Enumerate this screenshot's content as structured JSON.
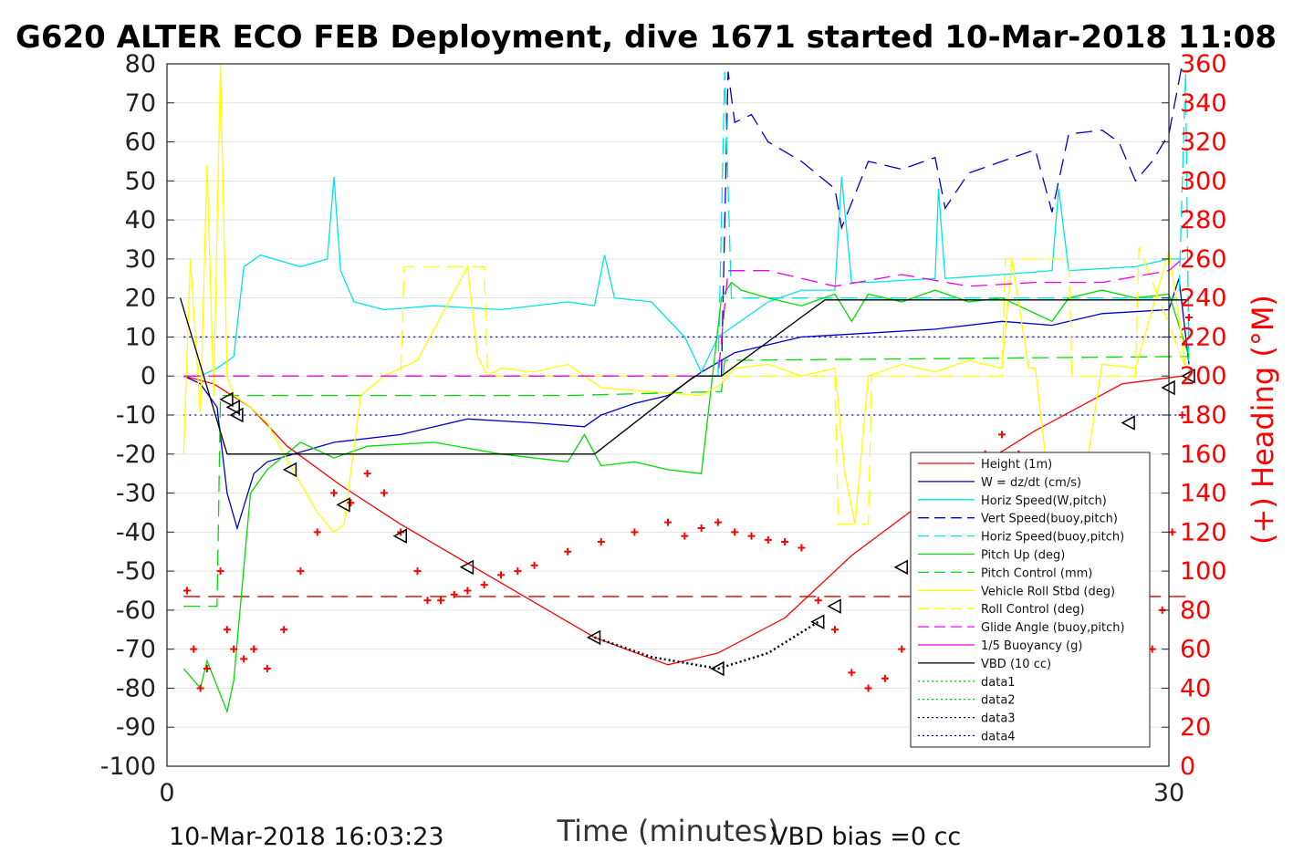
{
  "chart_data": {
    "type": "line",
    "title": "G620 ALTER ECO FEB Deployment, dive 1671 started 10-Mar-2018 11:08",
    "xlabel": "Time (minutes)",
    "ylabel_right": "(+) Heading (°M)",
    "footer_left": "10-Mar-2018 16:03:23",
    "footer_right": "VBD bias =0 cc",
    "xlim": [
      0,
      30
    ],
    "ylim": [
      -100,
      80
    ],
    "ylim_right": [
      0,
      360
    ],
    "x_ticks": [
      "0",
      "30"
    ],
    "y_ticks": [
      "80",
      "70",
      "60",
      "50",
      "40",
      "30",
      "20",
      "10",
      "0",
      "-10",
      "-20",
      "-30",
      "-40",
      "-50",
      "-60",
      "-70",
      "-80",
      "-90",
      "-100"
    ],
    "y_ticks_right": [
      "360",
      "340",
      "320",
      "300",
      "280",
      "260",
      "240",
      "220",
      "200",
      "180",
      "160",
      "140",
      "120",
      "100",
      "80",
      "60",
      "40",
      "20",
      "0"
    ],
    "grid": "horizontal",
    "legend_position": "lower-right",
    "colors": {
      "height": "#ff0000",
      "w": "#0000cc",
      "horiz_speed": "#00e5e5",
      "pitch": "#00dd00",
      "roll": "#ffff00",
      "glide": "#ee00ee",
      "vbd": "#000000",
      "heading": "#ff0000"
    },
    "legend": [
      {
        "label": "Height (1m)",
        "color": "#ff0000",
        "dash": "solid"
      },
      {
        "label": "W = dz/dt (cm/s)",
        "color": "#0000cc",
        "dash": "solid"
      },
      {
        "label": "Horiz Speed(W,pitch)",
        "color": "#00e5e5",
        "dash": "solid"
      },
      {
        "label": "Vert Speed(buoy,pitch)",
        "color": "#0000cc",
        "dash": "dashed"
      },
      {
        "label": "Horiz Speed(buoy,pitch)",
        "color": "#00e5e5",
        "dash": "dashed"
      },
      {
        "label": "Pitch Up (deg)",
        "color": "#00dd00",
        "dash": "solid"
      },
      {
        "label": "Pitch Control (mm)",
        "color": "#00dd00",
        "dash": "dashed"
      },
      {
        "label": "Vehicle Roll Stbd (deg)",
        "color": "#ffff00",
        "dash": "solid"
      },
      {
        "label": "Roll Control (deg)",
        "color": "#ffff00",
        "dash": "dashed"
      },
      {
        "label": "Glide Angle (buoy,pitch)",
        "color": "#ee00ee",
        "dash": "dashed"
      },
      {
        "label": "1/5 Buoyancy (g)",
        "color": "#ee00ee",
        "dash": "solid"
      },
      {
        "label": "VBD (10 cc)",
        "color": "#000000",
        "dash": "solid"
      },
      {
        "label": "data1",
        "color": "#00dd00",
        "dash": "dotted"
      },
      {
        "label": "data2",
        "color": "#00dd00",
        "dash": "dotted"
      },
      {
        "label": "data3",
        "color": "#000088",
        "dash": "dotted"
      },
      {
        "label": "data4",
        "color": "#0000cc",
        "dash": "dotted"
      }
    ],
    "series": [
      {
        "key": "height",
        "color": "#ff0000",
        "dash": "solid",
        "x": [
          0.5,
          1.4,
          2.5,
          3.6,
          5.2,
          7.0,
          9.0,
          11.0,
          12.8,
          15.0,
          16.5,
          18.5,
          20.5,
          23.0,
          26.0,
          28.6,
          30.4
        ],
        "y": [
          0,
          -2,
          -8,
          -18,
          -28,
          -38,
          -48,
          -58,
          -67,
          -74,
          -71,
          -62,
          -46,
          -30,
          -14,
          -2,
          0
        ]
      },
      {
        "key": "w",
        "color": "#0000cc",
        "dash": "solid",
        "x": [
          0.5,
          1.0,
          1.5,
          1.8,
          2.1,
          2.6,
          3.0,
          5.0,
          7.0,
          9.0,
          11.0,
          12.5,
          13.0,
          14.0,
          15.0,
          16.0,
          17.0,
          19.0,
          21.0,
          23.0,
          25.0,
          26.5,
          28.0,
          30.0,
          30.3,
          30.6
        ],
        "y": [
          0,
          -2,
          -8,
          -30,
          -39,
          -25,
          -22,
          -17,
          -15,
          -11,
          -12,
          -13,
          -10,
          -7,
          -5,
          1,
          6,
          10,
          11,
          12,
          14,
          13,
          16,
          17,
          25,
          3
        ]
      },
      {
        "key": "horiz_speed",
        "color": "#00e5e5",
        "dash": "solid",
        "x": [
          1.0,
          1.5,
          2.0,
          2.3,
          2.8,
          4.0,
          4.8,
          5.0,
          5.2,
          5.6,
          6.5,
          8.0,
          10.0,
          12.0,
          12.8,
          13.1,
          13.4,
          14.5,
          15.5,
          16.0,
          16.5,
          17.0,
          18.0,
          19.0,
          20.0,
          20.2,
          20.5,
          21.0,
          23.0,
          23.1,
          23.3,
          25.0,
          26.5,
          26.7,
          27.0,
          29.0,
          30.0,
          30.5
        ],
        "y": [
          0,
          2,
          5,
          28,
          31,
          28,
          30,
          51,
          27,
          19,
          17,
          18,
          17,
          19,
          18,
          31,
          20,
          19,
          10,
          1,
          10,
          13,
          19,
          22,
          22,
          51,
          24,
          24,
          25,
          48,
          25,
          26,
          27,
          48,
          27,
          28,
          30,
          30
        ]
      },
      {
        "key": "vert_speed_buoy",
        "color": "#0000cc",
        "dash": "dashed",
        "x": [
          16.6,
          16.8,
          17.0,
          17.5,
          18.0,
          19.0,
          20.0,
          20.2,
          21.0,
          22.0,
          23.0,
          23.3,
          24.0,
          25.0,
          26.0,
          26.5,
          27.0,
          28.0,
          28.5,
          29.0,
          29.5,
          30.0,
          30.4
        ],
        "y": [
          0,
          78,
          65,
          67,
          60,
          55,
          48,
          38,
          55,
          53,
          56,
          43,
          52,
          55,
          58,
          42,
          62,
          63,
          60,
          50,
          55,
          62,
          80
        ]
      },
      {
        "key": "horiz_speed_buoy",
        "color": "#00e5e5",
        "dash": "dashed",
        "x": [
          16.5,
          16.7,
          16.9,
          30.3,
          30.5,
          30.6
        ],
        "y": [
          0,
          78,
          20,
          20,
          78,
          0
        ]
      },
      {
        "key": "pitch",
        "color": "#00dd00",
        "dash": "solid",
        "x": [
          0.5,
          1.0,
          1.2,
          1.8,
          2.0,
          2.5,
          3.0,
          4.0,
          5.0,
          6.0,
          8.0,
          10.0,
          12.0,
          12.5,
          13.0,
          14.0,
          15.0,
          16.0,
          16.6,
          16.9,
          17.2,
          18.0,
          19.0,
          20.0,
          20.5,
          21.0,
          22.0,
          23.0,
          24.0,
          25.0,
          26.5,
          27.0,
          28.0,
          29.0,
          30.0,
          30.6
        ],
        "y": [
          -75,
          -80,
          -73,
          -86,
          -78,
          -30,
          -24,
          -17,
          -21,
          -18,
          -17,
          -20,
          -22,
          -15,
          -23,
          -22,
          -24,
          -25,
          20,
          24,
          22,
          20,
          18,
          21,
          14,
          21,
          19,
          22,
          19,
          20,
          14,
          20,
          22,
          20,
          21,
          5
        ]
      },
      {
        "key": "pitch_control",
        "color": "#00dd00",
        "dash": "dashed",
        "x": [
          0.5,
          1.5,
          1.6,
          3.5,
          12.0,
          16.6,
          16.7,
          30.6
        ],
        "y": [
          -59,
          -59,
          -5,
          -5,
          -5,
          -4,
          4,
          5
        ]
      },
      {
        "key": "roll",
        "color": "#ffff00",
        "dash": "solid",
        "x": [
          0.5,
          0.7,
          1.0,
          1.2,
          1.4,
          1.6,
          1.8,
          2.0,
          2.5,
          3.0,
          3.5,
          4.5,
          5.0,
          5.3,
          5.8,
          6.5,
          7.5,
          9.0,
          9.3,
          9.6,
          10.0,
          11.0,
          12.0,
          13.0,
          16.0,
          16.6,
          17.0,
          18.0,
          19.0,
          20.0,
          20.3,
          20.6,
          21.0,
          22.0,
          23.0,
          24.0,
          25.0,
          25.3,
          25.8,
          26.0,
          26.5,
          27.0,
          27.5,
          28.0,
          29.0,
          30.0,
          30.5
        ],
        "y": [
          -20,
          30,
          -10,
          54,
          -5,
          80,
          0,
          -5,
          -8,
          -12,
          -20,
          -35,
          -40,
          -38,
          -5,
          0,
          4,
          28,
          5,
          0,
          2,
          1,
          3,
          -3,
          -5,
          -2,
          2,
          3,
          0,
          2,
          -25,
          -38,
          0,
          3,
          1,
          4,
          2,
          30,
          2,
          2,
          -35,
          -38,
          -25,
          3,
          2,
          32,
          3
        ]
      },
      {
        "key": "roll_control",
        "color": "#ffff00",
        "dash": "dashed",
        "x": [
          0.5,
          7.0,
          7.1,
          9.5,
          9.6,
          16.5,
          20.0,
          20.1,
          21.0,
          21.1,
          25.0,
          25.1,
          27.0,
          27.1,
          29.0,
          29.1,
          30.6
        ],
        "y": [
          0,
          0,
          28,
          28,
          0,
          0,
          0,
          -38,
          -38,
          0,
          0,
          30,
          30,
          0,
          0,
          33,
          0
        ]
      },
      {
        "key": "glide",
        "color": "#ee00ee",
        "dash": "dashed",
        "x": [
          0.5,
          16.5,
          16.8,
          18.0,
          20.0,
          22.0,
          24.0,
          26.0,
          28.0,
          30.0,
          30.4
        ],
        "y": [
          0,
          0,
          27,
          27,
          23,
          26,
          23,
          24,
          24,
          27,
          30
        ]
      },
      {
        "key": "vbd",
        "color": "#000000",
        "dash": "solid",
        "x": [
          0.4,
          1.8,
          12.8,
          15.8,
          16.6,
          19.7,
          30.6
        ],
        "y": [
          20,
          -20,
          -20,
          0,
          0,
          19.5,
          19.5
        ]
      }
    ],
    "ref_lines": [
      {
        "y": 10,
        "color": "#000088",
        "dash": "dotted",
        "x0": 0.5,
        "x1": 30.4
      },
      {
        "y": -10,
        "color": "#0000cc",
        "dash": "dotted",
        "x0": 0.5,
        "x1": 30.4
      },
      {
        "y": 0,
        "color": "#8844ff",
        "dash": "dashed",
        "x0": 0.5,
        "x1": 16.5
      },
      {
        "y": -56.5,
        "color": "#cc0000",
        "dash": "dashed",
        "x0": 0.5,
        "x1": 30.6
      }
    ],
    "heading_marker_series": {
      "x": [
        0.6,
        0.8,
        1.0,
        1.2,
        1.6,
        1.8,
        2.0,
        2.3,
        2.6,
        3.0,
        3.5,
        4.0,
        4.5,
        5.0,
        5.5,
        6.0,
        6.5,
        7.0,
        7.5,
        7.8,
        8.2,
        8.6,
        9.0,
        9.5,
        10.0,
        10.5,
        11.0,
        12.0,
        13.0,
        14.0,
        15.0,
        15.5,
        16.0,
        16.5,
        17.0,
        17.5,
        18.0,
        18.5,
        19.0,
        19.5,
        20.0,
        20.5,
        21.0,
        21.5,
        22.0,
        22.5,
        23.0,
        23.5,
        24.0,
        24.5,
        25.0,
        25.5,
        25.8,
        26.2,
        26.6,
        27.0,
        27.5,
        28.0,
        28.5,
        29.0,
        29.5,
        29.8,
        30.1,
        30.4,
        30.6
      ],
      "y": [
        90,
        60,
        40,
        50,
        100,
        70,
        60,
        55,
        60,
        50,
        70,
        100,
        120,
        140,
        135,
        150,
        140,
        120,
        100,
        85,
        85,
        88,
        90,
        93,
        98,
        100,
        103,
        110,
        115,
        120,
        125,
        118,
        122,
        125,
        120,
        118,
        116,
        115,
        112,
        85,
        70,
        48,
        40,
        45,
        60,
        80,
        100,
        130,
        150,
        160,
        170,
        160,
        130,
        100,
        80,
        70,
        55,
        42,
        38,
        45,
        60,
        80,
        120,
        180,
        230
      ]
    },
    "triangle_markers": {
      "x": [
        1.8,
        2.0,
        2.1,
        3.7,
        5.3,
        7.0,
        9.0,
        12.8,
        16.5,
        19.5,
        20.0,
        22.0,
        24.5,
        25.5,
        27.0,
        28.8,
        30.0,
        30.6
      ],
      "y": [
        -6,
        -8,
        -10,
        -24,
        -33,
        -41,
        -49,
        -67,
        -75,
        -63,
        -59,
        -49,
        -43,
        -31,
        -24,
        -12,
        -3,
        0
      ]
    },
    "dotted_segment": {
      "x": [
        12.8,
        14.5,
        16.5,
        18.0,
        19.5
      ],
      "y": [
        -67,
        -72,
        -75,
        -71,
        -63
      ]
    }
  }
}
